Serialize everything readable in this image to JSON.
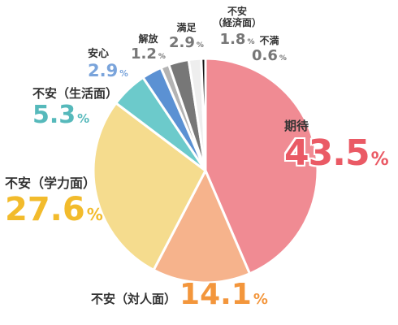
{
  "chart_data": {
    "type": "pie",
    "slices": [
      {
        "label": "期待",
        "value": 43.5,
        "color": "#f08b93",
        "label_color": "#ea5a65"
      },
      {
        "label": "不安（対人面）",
        "value": 14.1,
        "color": "#f6b38c",
        "label_color": "#f3963c"
      },
      {
        "label": "不安（学力面）",
        "value": 27.6,
        "color": "#f5dc8e",
        "label_color": "#f2bb2c"
      },
      {
        "label": "不安（生活面）",
        "value": 5.3,
        "color": "#6ccacb",
        "label_color": "#56b9bb"
      },
      {
        "label": "安心",
        "value": 2.9,
        "color": "#5b91d3",
        "label_color": "#7aa4db"
      },
      {
        "label": "解放",
        "value": 1.2,
        "color": "#b3b3b3",
        "label_color": "#777777"
      },
      {
        "label": "満足",
        "value": 2.9,
        "color": "#777777",
        "label_color": "#777777"
      },
      {
        "label": "不安\n（経済面）",
        "value": 1.8,
        "color": "#eeeeee",
        "label_color": "#777777"
      },
      {
        "label": "不満",
        "value": 0.6,
        "color": "#111111",
        "label_color": "#777777"
      }
    ],
    "unit": "%",
    "start": "top",
    "direction": "clockwise",
    "legend": "none"
  }
}
